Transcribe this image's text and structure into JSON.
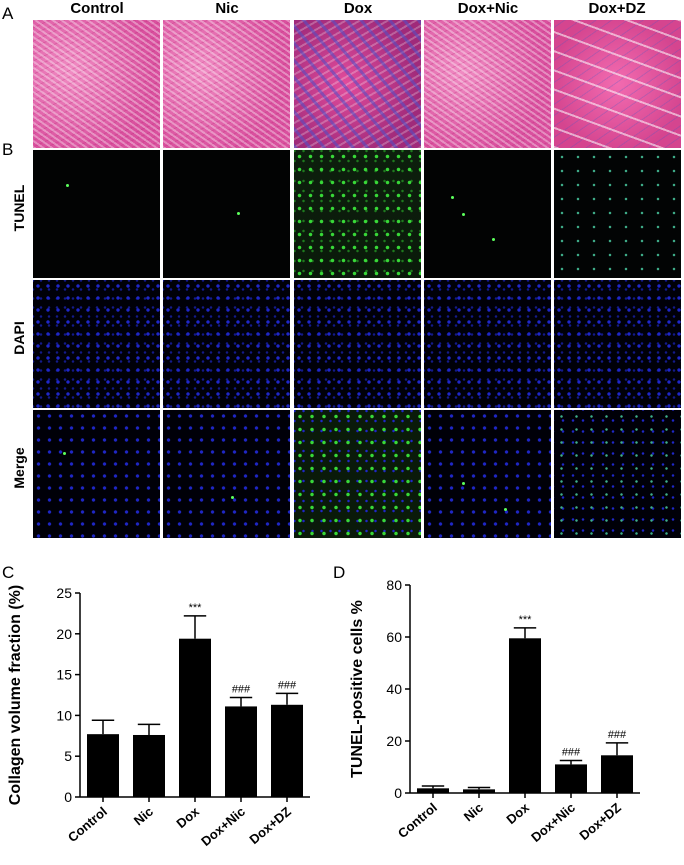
{
  "panel_letters": {
    "a": "A",
    "b": "B",
    "c": "C",
    "d": "D"
  },
  "column_headers": [
    "Control",
    "Nic",
    "Dox",
    "Dox+Nic",
    "Dox+DZ"
  ],
  "row_labels": {
    "tunel": "TUNEL",
    "dapi": "DAPI",
    "merge": "Merge"
  },
  "colors": {
    "bar": "#000000",
    "he_stain": "#e05aa6",
    "tunel_green": "#38d838",
    "dapi_blue": "#1f27c8"
  },
  "chart_data": [
    {
      "type": "bar",
      "categories": [
        "Control",
        "Nic",
        "Dox",
        "Dox+Nic",
        "Dox+DZ"
      ],
      "values": [
        7.7,
        7.6,
        19.4,
        11.1,
        11.3
      ],
      "errors": [
        1.7,
        1.3,
        2.8,
        1.1,
        1.4
      ],
      "annotations": [
        "",
        "",
        "***",
        "###",
        "###"
      ],
      "title": "",
      "xlabel": "",
      "ylabel": "Collagen volume fraction (%)",
      "ylim": [
        0,
        25
      ],
      "yticks": [
        0,
        5,
        10,
        15,
        20,
        25
      ],
      "grid": false
    },
    {
      "type": "bar",
      "categories": [
        "Control",
        "Nic",
        "Dox",
        "Dox+Nic",
        "Dox+DZ"
      ],
      "values": [
        1.8,
        1.4,
        59.5,
        11.0,
        14.5
      ],
      "errors": [
        0.9,
        0.7,
        4.0,
        1.5,
        4.8
      ],
      "annotations": [
        "",
        "",
        "***",
        "###",
        "###"
      ],
      "title": "",
      "xlabel": "",
      "ylabel": "TUNEL-positive cells %",
      "ylim": [
        0,
        80
      ],
      "yticks": [
        0,
        20,
        40,
        60,
        80
      ],
      "grid": false
    }
  ]
}
